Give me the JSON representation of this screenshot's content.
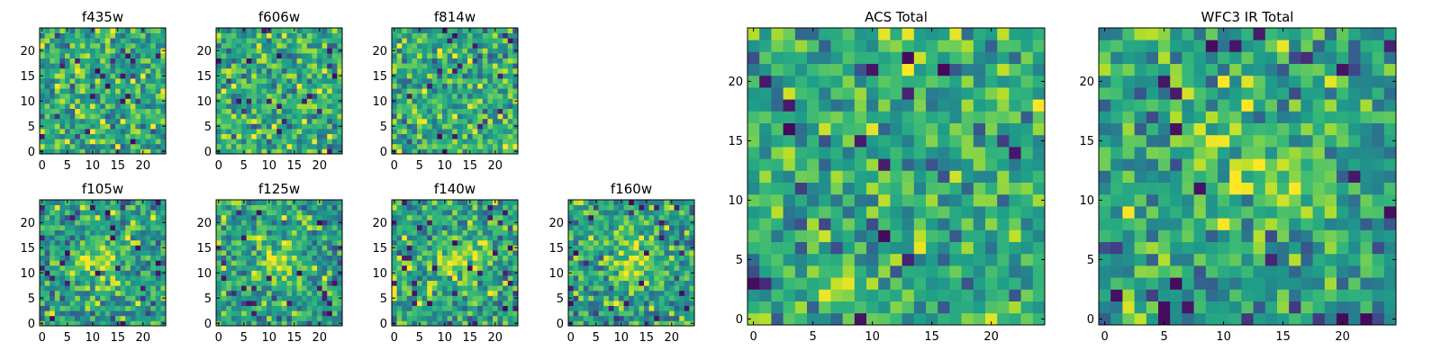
{
  "chart_data": [
    {
      "id": "f435w",
      "type": "heatmap",
      "title": "f435w",
      "size": 25,
      "xlim": [
        -0.5,
        24.5
      ],
      "ylim": [
        -0.5,
        24.5
      ],
      "xticks": [
        0,
        5,
        10,
        15,
        20
      ],
      "yticks": [
        0,
        5,
        10,
        15,
        20
      ],
      "colormap": "viridis",
      "structure": "noise",
      "seed": 11
    },
    {
      "id": "f606w",
      "type": "heatmap",
      "title": "f606w",
      "size": 25,
      "xlim": [
        -0.5,
        24.5
      ],
      "ylim": [
        -0.5,
        24.5
      ],
      "xticks": [
        0,
        5,
        10,
        15,
        20
      ],
      "yticks": [
        0,
        5,
        10,
        15,
        20
      ],
      "colormap": "viridis",
      "structure": "noise",
      "seed": 23
    },
    {
      "id": "f814w",
      "type": "heatmap",
      "title": "f814w",
      "size": 25,
      "xlim": [
        -0.5,
        24.5
      ],
      "ylim": [
        -0.5,
        24.5
      ],
      "xticks": [
        0,
        5,
        10,
        15,
        20
      ],
      "yticks": [
        0,
        5,
        10,
        15,
        20
      ],
      "colormap": "viridis",
      "structure": "noise",
      "seed": 37
    },
    {
      "id": "f105w",
      "type": "heatmap",
      "title": "f105w",
      "size": 25,
      "xlim": [
        -0.5,
        24.5
      ],
      "ylim": [
        -0.5,
        24.5
      ],
      "xticks": [
        0,
        5,
        10,
        15,
        20
      ],
      "yticks": [
        0,
        5,
        10,
        15,
        20
      ],
      "colormap": "viridis",
      "structure": "central-source",
      "seed": 41
    },
    {
      "id": "f125w",
      "type": "heatmap",
      "title": "f125w",
      "size": 25,
      "xlim": [
        -0.5,
        24.5
      ],
      "ylim": [
        -0.5,
        24.5
      ],
      "xticks": [
        0,
        5,
        10,
        15,
        20
      ],
      "yticks": [
        0,
        5,
        10,
        15,
        20
      ],
      "colormap": "viridis",
      "structure": "central-source",
      "seed": 53
    },
    {
      "id": "f140w",
      "type": "heatmap",
      "title": "f140w",
      "size": 25,
      "xlim": [
        -0.5,
        24.5
      ],
      "ylim": [
        -0.5,
        24.5
      ],
      "xticks": [
        0,
        5,
        10,
        15,
        20
      ],
      "yticks": [
        0,
        5,
        10,
        15,
        20
      ],
      "colormap": "viridis",
      "structure": "central-source",
      "seed": 67
    },
    {
      "id": "f160w",
      "type": "heatmap",
      "title": "f160w",
      "size": 25,
      "xlim": [
        -0.5,
        24.5
      ],
      "ylim": [
        -0.5,
        24.5
      ],
      "xticks": [
        0,
        5,
        10,
        15,
        20
      ],
      "yticks": [
        0,
        5,
        10,
        15,
        20
      ],
      "colormap": "viridis",
      "structure": "central-source",
      "seed": 79
    },
    {
      "id": "acs-total",
      "type": "heatmap",
      "title": "ACS Total",
      "size": 25,
      "xlim": [
        -0.5,
        24.5
      ],
      "ylim": [
        -0.5,
        24.5
      ],
      "xticks": [
        0,
        5,
        10,
        15,
        20
      ],
      "yticks": [
        0,
        5,
        10,
        15,
        20
      ],
      "colormap": "viridis",
      "structure": "noise",
      "seed": 97
    },
    {
      "id": "wfc3-ir-total",
      "type": "heatmap",
      "title": "WFC3 IR Total",
      "size": 25,
      "xlim": [
        -0.5,
        24.5
      ],
      "ylim": [
        -0.5,
        24.5
      ],
      "xticks": [
        0,
        5,
        10,
        15,
        20
      ],
      "yticks": [
        0,
        5,
        10,
        15,
        20
      ],
      "colormap": "viridis",
      "structure": "central-source",
      "seed": 113
    }
  ]
}
